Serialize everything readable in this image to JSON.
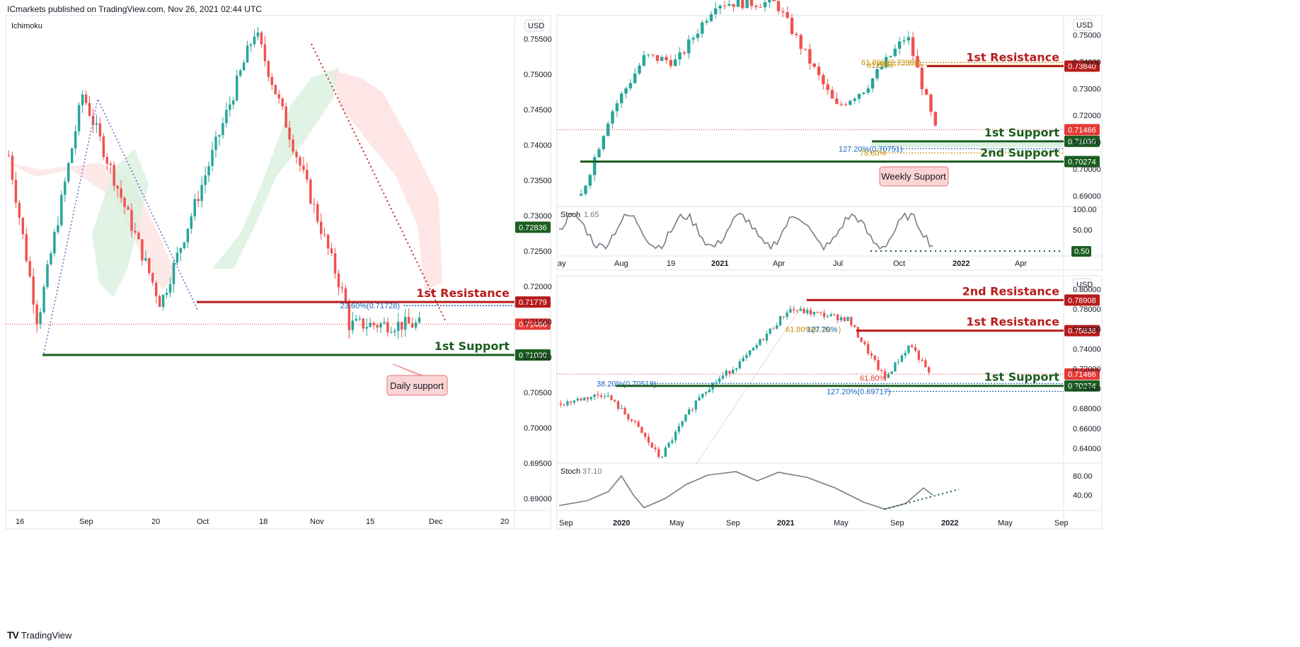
{
  "header": {
    "publisher": "ICmarkets published on TradingView.com, Nov 26, 2021 02:44 UTC"
  },
  "footer": {
    "brand": "TradingView",
    "logo": "TV"
  },
  "colors": {
    "red": "#b71c1c",
    "green": "#1b5e20",
    "blue": "#1565c0",
    "orange": "#c58f00",
    "candle_up": "#26a69a",
    "candle_down": "#ef5350"
  },
  "chart_data": [
    {
      "type": "candlestick",
      "title": "",
      "indicator_label": "Ichimoku",
      "currency": "USD",
      "x_ticks": [
        "16",
        "Sep",
        "20",
        "Oct",
        "18",
        "Nov",
        "15",
        "Dec",
        "20"
      ],
      "y_ticks": [
        "0.75500",
        "0.75000",
        "0.74500",
        "0.74000",
        "0.73500",
        "0.73000",
        "0.72500",
        "0.72000",
        "0.71500",
        "0.71000",
        "0.70500",
        "0.70000",
        "0.69500",
        "0.69000"
      ],
      "ylim": [
        0.6885,
        0.7575
      ],
      "price_path": [
        {
          "t": 0,
          "p": 0.7385
        },
        {
          "t": 0.07,
          "p": 0.715
        },
        {
          "t": 0.18,
          "p": 0.7473
        },
        {
          "t": 0.37,
          "p": 0.7175
        },
        {
          "t": 0.6,
          "p": 0.7562
        },
        {
          "t": 0.82,
          "p": 0.7178
        },
        {
          "t": 0.827,
          "p": 0.7146
        }
      ],
      "levels": [
        {
          "label": "1st Resistance",
          "value": 0.71779,
          "tag": "0.71779",
          "color": "#b71c1c"
        },
        {
          "label": "1st Support",
          "value": 0.7103,
          "tag": "0.71030",
          "color": "#1b5e20"
        }
      ],
      "price_tags": [
        {
          "value": 0.72836,
          "tag": "0.72836",
          "color": "#1b5e20"
        },
        {
          "value": 0.71466,
          "tag": "0.71466",
          "color": "#e53935"
        }
      ],
      "fib": [
        {
          "label": "23.60%(0.71728)",
          "value": 0.71728
        }
      ],
      "callout": "Daily support"
    },
    {
      "type": "candlestick",
      "title": "",
      "currency": "USD",
      "x_ticks": [
        "ay",
        "Aug",
        "19",
        "2021",
        "Apr",
        "Jul",
        "Oct",
        "2022",
        "Apr"
      ],
      "y_ticks": [
        "0.75000",
        "0.74000",
        "0.73000",
        "0.72000",
        "0.71000",
        "0.70000",
        "0.69000"
      ],
      "ylim": [
        0.6865,
        0.7565
      ],
      "levels": [
        {
          "label": "1st Resistance",
          "value": 0.7384,
          "tag": "0.73840",
          "color": "#b71c1c"
        },
        {
          "label": "1st Support",
          "value": 0.7103,
          "tag": "0.71030",
          "color": "#1b5e20"
        },
        {
          "label": "2nd Support",
          "value": 0.70274,
          "tag": "0.70274",
          "color": "#1b5e20"
        }
      ],
      "price_tags": [
        {
          "value": 0.71466,
          "tag": "0.71466",
          "color": "#e53935"
        }
      ],
      "fib": [
        {
          "label": "61.80%(0.73980)",
          "value": 0.7398,
          "color": "#c58f00"
        },
        {
          "label": "61.80%",
          "value": 0.7388,
          "color": "#c58f00"
        },
        {
          "label": "127.20%(0.70751)",
          "value": 0.70751,
          "color": "#1565c0"
        },
        {
          "label": "78.60%",
          "value": 0.706,
          "color": "#c58f00"
        }
      ],
      "callout": "Weekly Support",
      "stoch": {
        "label": "Stoch",
        "value": "1.65",
        "y_ticks": [
          "100.00",
          "50.00"
        ],
        "tag": "0.50"
      }
    },
    {
      "type": "candlestick",
      "title": "",
      "currency": "USD",
      "x_ticks": [
        "Sep",
        "2020",
        "May",
        "Sep",
        "2021",
        "May",
        "Sep",
        "2022",
        "May",
        "Sep"
      ],
      "y_ticks": [
        "0.80000",
        "0.78000",
        "0.76000",
        "0.74000",
        "0.72000",
        "0.70000",
        "0.68000",
        "0.66000",
        "0.64000"
      ],
      "ylim": [
        0.625,
        0.81
      ],
      "levels": [
        {
          "label": "2nd Resistance",
          "value": 0.78908,
          "tag": "0.78908",
          "color": "#b71c1c"
        },
        {
          "label": "1st Resistance",
          "value": 0.75836,
          "tag": "0.75836",
          "color": "#b71c1c"
        },
        {
          "label": "1st Support",
          "value": 0.70274,
          "tag": "0.70274",
          "color": "#1b5e20"
        }
      ],
      "price_tags": [
        {
          "value": 0.71466,
          "tag": "0.71466",
          "color": "#e53935"
        }
      ],
      "fib": [
        {
          "label": "38.20%(0.70519)",
          "value": 0.70519,
          "color": "#1565c0"
        },
        {
          "label": "61.80%(0.76... )",
          "value": 0.76,
          "color": "#c58f00"
        },
        {
          "label": "127.20%",
          "value": 0.76,
          "color": "#1565c0"
        },
        {
          "label": "61.80%",
          "value": 0.705,
          "color": "#e53935"
        },
        {
          "label": "127.20%(0.69717)",
          "value": 0.69717,
          "color": "#1565c0"
        }
      ],
      "stoch": {
        "label": "Stoch",
        "value": "37.10",
        "y_ticks": [
          "80.00",
          "40.00"
        ]
      }
    }
  ]
}
